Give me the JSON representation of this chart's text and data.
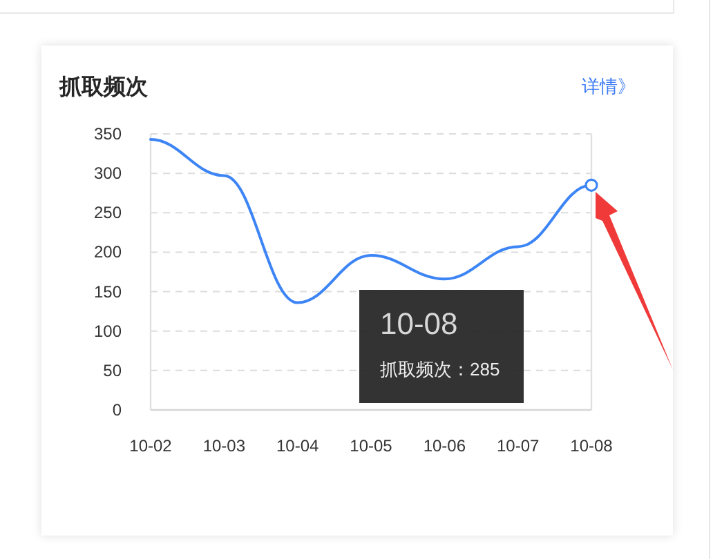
{
  "chart_data": {
    "type": "line",
    "title": "抓取频次",
    "categories": [
      "10-02",
      "10-03",
      "10-04",
      "10-05",
      "10-06",
      "10-07",
      "10-08"
    ],
    "series": [
      {
        "color": "#3d85f5",
        "values": [
          343,
          297,
          136,
          196,
          166,
          207,
          285
        ]
      },
      {
        "type": "scatter",
        "x": [
          "10-08"
        ],
        "values": [
          285
        ],
        "color": "#3d85f5",
        "marker": "circle"
      }
    ],
    "ylim": [
      0,
      350
    ],
    "yticks": [
      0,
      50,
      100,
      150,
      200,
      250,
      300,
      350
    ],
    "grid": "y",
    "marker": "none",
    "line_style": "solid",
    "annotations": [
      "详情》",
      "10-08",
      "抓取频次：285"
    ]
  }
}
